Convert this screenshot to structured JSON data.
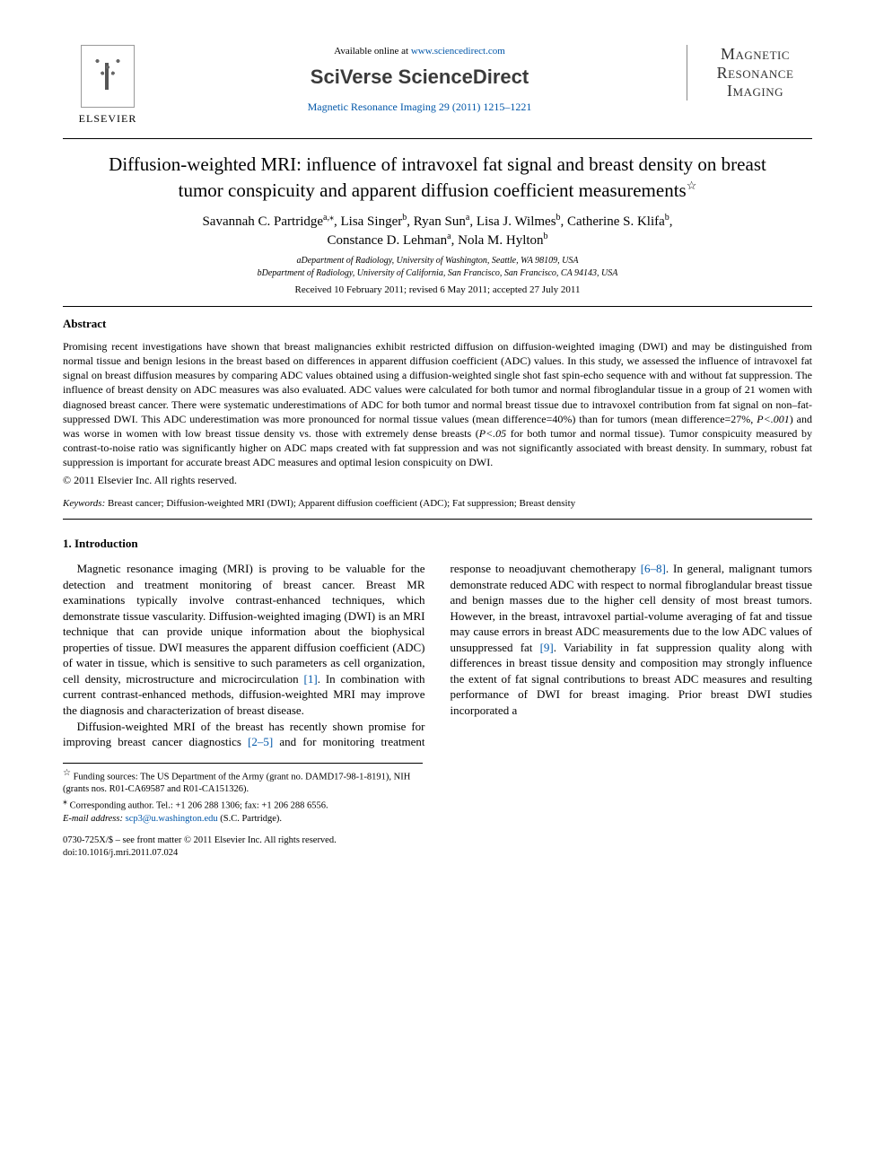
{
  "header": {
    "publisher_label": "ELSEVIER",
    "available_prefix": "Available online at ",
    "available_link": "www.sciencedirect.com",
    "platform_brand": "SciVerse ScienceDirect",
    "journal_reference": "Magnetic Resonance Imaging 29 (2011) 1215–1221",
    "journal_badge_line1": "Magnetic",
    "journal_badge_line2": "Resonance",
    "journal_badge_line3": "Imaging"
  },
  "title": "Diffusion-weighted MRI: influence of intravoxel fat signal and breast density on breast tumor conspicuity and apparent diffusion coefficient measurements",
  "title_footnote_marker": "☆",
  "authors_line1": "Savannah C. Partridge",
  "authors_sup1": "a,",
  "authors_star": "⁎",
  "authors_line1b": ", Lisa Singer",
  "authors_sup2": "b",
  "authors_line1c": ", Ryan Sun",
  "authors_sup3": "a",
  "authors_line1d": ", Lisa J. Wilmes",
  "authors_sup4": "b",
  "authors_line1e": ", Catherine S. Klifa",
  "authors_sup5": "b",
  "authors_line1f": ",",
  "authors_line2a": "Constance D. Lehman",
  "authors_sup6": "a",
  "authors_line2b": ", Nola M. Hylton",
  "authors_sup7": "b",
  "affiliations": {
    "a": "aDepartment of Radiology, University of Washington, Seattle, WA 98109, USA",
    "b": "bDepartment of Radiology, University of California, San Francisco, San Francisco, CA 94143, USA"
  },
  "dates": "Received 10 February 2011; revised 6 May 2011; accepted 27 July 2011",
  "abstract": {
    "heading": "Abstract",
    "body_1": "Promising recent investigations have shown that breast malignancies exhibit restricted diffusion on diffusion-weighted imaging (DWI) and may be distinguished from normal tissue and benign lesions in the breast based on differences in apparent diffusion coefficient (ADC) values. In this study, we assessed the influence of intravoxel fat signal on breast diffusion measures by comparing ADC values obtained using a diffusion-weighted single shot fast spin-echo sequence with and without fat suppression. The influence of breast density on ADC measures was also evaluated. ADC values were calculated for both tumor and normal fibroglandular tissue in a group of 21 women with diagnosed breast cancer. There were systematic underestimations of ADC for both tumor and normal breast tissue due to intravoxel contribution from fat signal on non–fat-suppressed DWI. This ADC underestimation was more pronounced for normal tissue values (mean difference=40%) than for tumors (mean difference=27%, ",
    "p_lt_001": "P<.001",
    "body_2": ") and was worse in women with low breast tissue density vs. those with extremely dense breasts (",
    "p_lt_05": "P<.05",
    "body_3": " for both tumor and normal tissue). Tumor conspicuity measured by contrast-to-noise ratio was significantly higher on ADC maps created with fat suppression and was not significantly associated with breast density. In summary, robust fat suppression is important for accurate breast ADC measures and optimal lesion conspicuity on DWI.",
    "copyright": "© 2011 Elsevier Inc. All rights reserved."
  },
  "keywords": {
    "label": "Keywords:",
    "list": "Breast cancer; Diffusion-weighted MRI (DWI); Apparent diffusion coefficient (ADC); Fat suppression; Breast density"
  },
  "section1": {
    "heading": "1. Introduction",
    "p1a": "Magnetic resonance imaging (MRI) is proving to be valuable for the detection and treatment monitoring of breast cancer. Breast MR examinations typically involve contrast-enhanced techniques, which demonstrate tissue vascularity. Diffusion-weighted imaging (DWI) is an MRI technique that can provide unique information about the biophysical properties of tissue. DWI measures the apparent diffusion coefficient (ADC) of water in tissue, which is sensitive to such parameters as cell organization, cell density, microstructure and microcirculation ",
    "cite1": "[1]",
    "p1b": ". In combination with current contrast-enhanced methods, diffusion-weighted MRI may improve the diagnosis and characterization of breast disease.",
    "p2a": "Diffusion-weighted MRI of the breast has recently shown promise for improving breast cancer diagnostics ",
    "cite2": "[2–5]",
    "p2b": " and for monitoring treatment response to neoadjuvant chemotherapy ",
    "cite3": "[6–8]",
    "p2c": ". In general, malignant tumors demonstrate reduced ADC with respect to normal fibroglandular breast tissue and benign masses due to the higher cell density of most breast tumors. However, in the breast, intravoxel partial-volume averaging of fat and tissue may cause errors in breast ADC measurements due to the low ADC values of unsuppressed fat ",
    "cite4": "[9]",
    "p2d": ". Variability in fat suppression quality along with differences in breast tissue density and composition may strongly influence the extent of fat signal contributions to breast ADC measures and resulting performance of DWI for breast imaging. Prior breast DWI studies incorporated a"
  },
  "footnotes": {
    "funding_marker": "☆",
    "funding": " Funding sources: The US Department of the Army (grant no. DAMD17-98-1-8191), NIH (grants nos. R01-CA69587 and R01-CA151326).",
    "corr_marker": "⁎",
    "corr": " Corresponding author. Tel.: +1 206 288 1306; fax: +1 206 288 6556.",
    "email_label": "E-mail address: ",
    "email": "scp3@u.washington.edu",
    "email_suffix": " (S.C. Partridge)."
  },
  "bottom": {
    "issn": "0730-725X/$ – see front matter © 2011 Elsevier Inc. All rights reserved.",
    "doi": "doi:10.1016/j.mri.2011.07.024"
  },
  "colors": {
    "link": "#0056a8",
    "text": "#000000",
    "background": "#ffffff"
  }
}
